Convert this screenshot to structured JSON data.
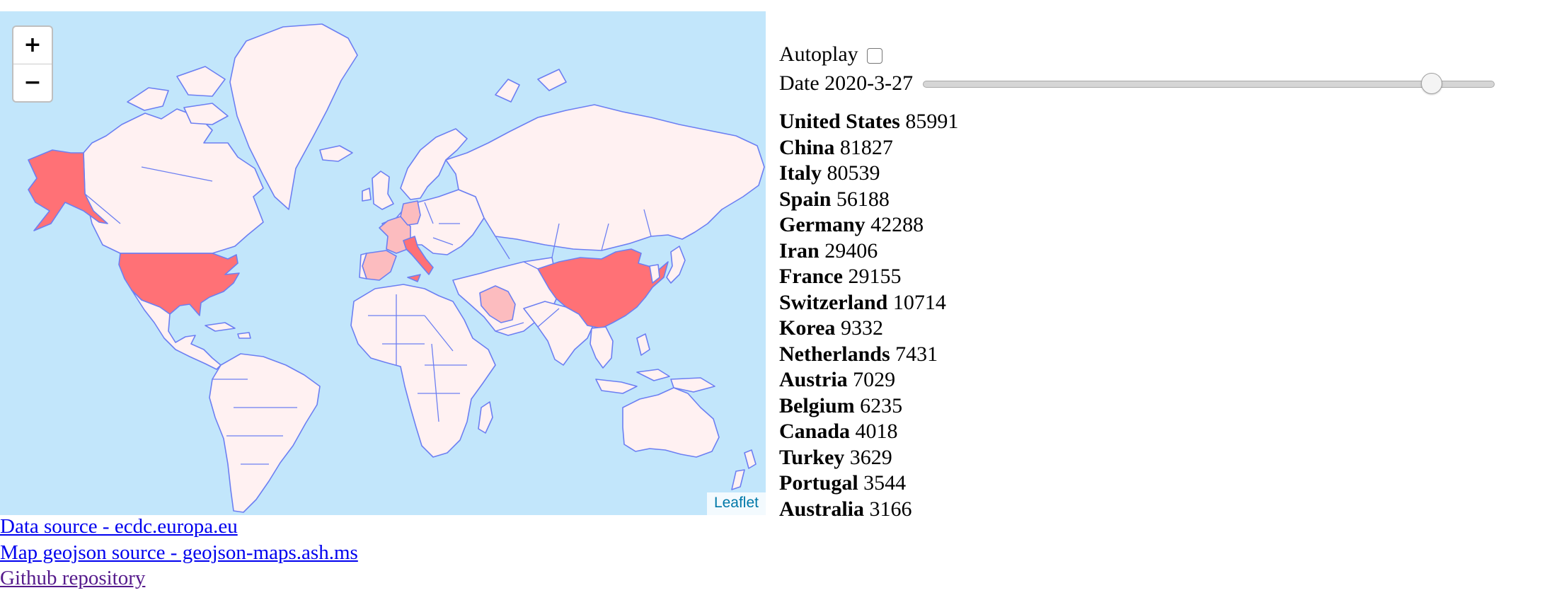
{
  "map": {
    "zoom_in_label": "+",
    "zoom_out_label": "−",
    "attribution": "Leaflet",
    "colors": {
      "water": "#c2e6fb",
      "land": "#fff1f2",
      "border": "#6c7ff2",
      "high": "#ff7176",
      "medium": "#fcbcbf"
    }
  },
  "controls": {
    "autoplay_label": "Autoplay",
    "date_label": "Date",
    "date_value": "2020-3-27",
    "slider_fraction": 0.89
  },
  "countries": [
    {
      "name": "United States",
      "cases": "85991"
    },
    {
      "name": "China",
      "cases": "81827"
    },
    {
      "name": "Italy",
      "cases": "80539"
    },
    {
      "name": "Spain",
      "cases": "56188"
    },
    {
      "name": "Germany",
      "cases": "42288"
    },
    {
      "name": "Iran",
      "cases": "29406"
    },
    {
      "name": "France",
      "cases": "29155"
    },
    {
      "name": "Switzerland",
      "cases": "10714"
    },
    {
      "name": "Korea",
      "cases": "9332"
    },
    {
      "name": "Netherlands",
      "cases": "7431"
    },
    {
      "name": "Austria",
      "cases": "7029"
    },
    {
      "name": "Belgium",
      "cases": "6235"
    },
    {
      "name": "Canada",
      "cases": "4018"
    },
    {
      "name": "Turkey",
      "cases": "3629"
    },
    {
      "name": "Portugal",
      "cases": "3544"
    },
    {
      "name": "Australia",
      "cases": "3166"
    }
  ],
  "links": [
    {
      "label": "Data source - ecdc.europa.eu",
      "visited": false
    },
    {
      "label": "Map geojson source - geojson-maps.ash.ms",
      "visited": false
    },
    {
      "label": "Github repository",
      "visited": true
    }
  ]
}
